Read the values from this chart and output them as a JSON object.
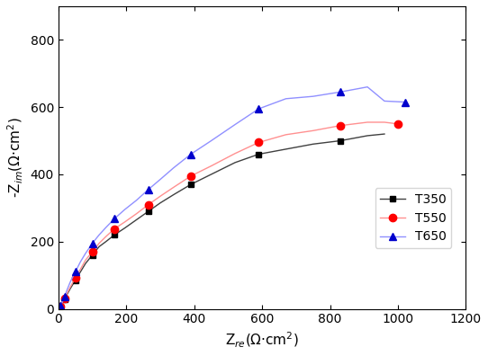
{
  "T350": {
    "x": [
      1,
      2,
      4,
      6,
      9,
      13,
      18,
      25,
      35,
      50,
      65,
      80,
      100,
      120,
      140,
      165,
      195,
      230,
      265,
      300,
      340,
      390,
      450,
      520,
      590,
      670,
      750,
      830,
      910,
      960
    ],
    "y": [
      1,
      2,
      4,
      8,
      12,
      18,
      28,
      42,
      60,
      85,
      110,
      135,
      160,
      185,
      200,
      220,
      240,
      265,
      290,
      315,
      340,
      370,
      400,
      435,
      460,
      475,
      490,
      500,
      515,
      520
    ]
  },
  "T550": {
    "x": [
      1,
      2,
      4,
      6,
      9,
      13,
      18,
      25,
      35,
      50,
      65,
      80,
      100,
      120,
      140,
      165,
      195,
      230,
      265,
      300,
      340,
      390,
      450,
      520,
      590,
      670,
      750,
      830,
      910,
      960,
      1000
    ],
    "y": [
      1,
      2,
      4,
      8,
      12,
      18,
      30,
      45,
      65,
      92,
      118,
      145,
      170,
      195,
      215,
      238,
      258,
      283,
      310,
      335,
      362,
      395,
      425,
      462,
      495,
      518,
      530,
      545,
      555,
      555,
      550
    ]
  },
  "T650": {
    "x": [
      1,
      2,
      4,
      6,
      9,
      13,
      18,
      25,
      35,
      50,
      65,
      80,
      100,
      120,
      140,
      165,
      195,
      230,
      265,
      300,
      340,
      390,
      450,
      520,
      590,
      670,
      750,
      830,
      910,
      960,
      1020
    ],
    "y": [
      1,
      2,
      5,
      10,
      15,
      23,
      35,
      55,
      80,
      110,
      140,
      165,
      195,
      220,
      242,
      268,
      295,
      323,
      355,
      385,
      420,
      460,
      500,
      548,
      595,
      625,
      632,
      645,
      660,
      618,
      615
    ]
  },
  "T350_color": "#404040",
  "T550_color": "#ff9090",
  "T650_color": "#9090ff",
  "T350_marker": "s",
  "T550_marker": "o",
  "T650_marker": "^",
  "T350_marker_color": "#000000",
  "T550_marker_color": "#ff0000",
  "T650_marker_color": "#0000cc",
  "xlabel": "Z$_{re}$(Ω·cm$^2$)",
  "ylabel": "-Z$_{im}$(Ω·cm$^2$)",
  "xlim": [
    0,
    1200
  ],
  "ylim": [
    0,
    900
  ],
  "xticks": [
    0,
    200,
    400,
    600,
    800,
    1000,
    1200
  ],
  "yticks": [
    0,
    200,
    400,
    600,
    800
  ],
  "legend_labels": [
    "T350",
    "T550",
    "T650"
  ],
  "figsize": [
    5.42,
    3.96
  ],
  "dpi": 100
}
